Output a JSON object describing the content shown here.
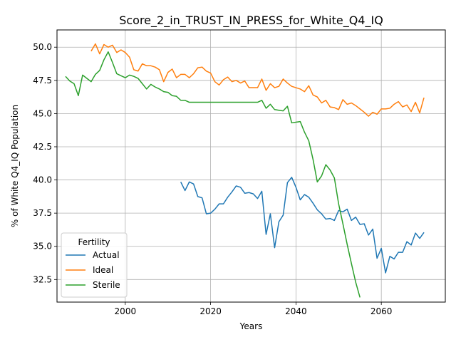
{
  "chart_data": {
    "type": "line",
    "title": "Score_2_in_TRUST_IN_PRESS_for_White_Q4_IQ",
    "xlabel": "Years",
    "ylabel": "% of White Q4_IQ Population",
    "xlim": [
      1984,
      2075
    ],
    "ylim": [
      30.8,
      51.3
    ],
    "xticks": [
      2000,
      2020,
      2040,
      2060
    ],
    "yticks": [
      32.5,
      35.0,
      37.5,
      40.0,
      42.5,
      45.0,
      47.5,
      50.0
    ],
    "xtick_labels": [
      "2000",
      "2020",
      "2040",
      "2060"
    ],
    "ytick_labels": [
      "32.5",
      "35.0",
      "37.5",
      "40.0",
      "42.5",
      "45.0",
      "47.5",
      "50.0"
    ],
    "grid": true,
    "legend": {
      "title": "Fertility",
      "position": "lower-left"
    },
    "series": [
      {
        "name": "Actual",
        "color": "#1f77b4",
        "x": [
          2013,
          2014,
          2015,
          2016,
          2017,
          2018,
          2019,
          2020,
          2021,
          2022,
          2023,
          2024,
          2025,
          2026,
          2027,
          2028,
          2029,
          2030,
          2031,
          2032,
          2033,
          2034,
          2035,
          2036,
          2037,
          2038,
          2039,
          2040,
          2041,
          2042,
          2043,
          2044,
          2045,
          2046,
          2047,
          2048,
          2049,
          2050,
          2051,
          2052,
          2053,
          2054,
          2055,
          2056,
          2057,
          2058,
          2059,
          2060,
          2061,
          2062,
          2063,
          2064,
          2065,
          2066,
          2067,
          2068,
          2069,
          2070
        ],
        "y": [
          39.85,
          39.2,
          39.85,
          39.7,
          38.75,
          38.65,
          37.45,
          37.5,
          37.8,
          38.2,
          38.2,
          38.7,
          39.1,
          39.55,
          39.45,
          39.0,
          39.05,
          38.95,
          38.6,
          39.15,
          35.9,
          37.45,
          34.9,
          36.85,
          37.35,
          39.8,
          40.2,
          39.45,
          38.5,
          38.9,
          38.7,
          38.25,
          37.75,
          37.45,
          37.05,
          37.1,
          36.95,
          37.7,
          37.6,
          37.8,
          36.95,
          37.2,
          36.65,
          36.7,
          35.85,
          36.3,
          34.1,
          34.85,
          33.0,
          34.25,
          34.05,
          34.55,
          34.55,
          35.35,
          35.1,
          36.0,
          35.6,
          36.05
        ]
      },
      {
        "name": "Ideal",
        "color": "#ff7f0e",
        "x": [
          1992,
          1993,
          1994,
          1995,
          1996,
          1997,
          1998,
          1999,
          2000,
          2001,
          2002,
          2003,
          2004,
          2005,
          2006,
          2007,
          2008,
          2009,
          2010,
          2011,
          2012,
          2013,
          2014,
          2015,
          2016,
          2017,
          2018,
          2019,
          2020,
          2021,
          2022,
          2023,
          2024,
          2025,
          2026,
          2027,
          2028,
          2029,
          2030,
          2031,
          2032,
          2033,
          2034,
          2035,
          2036,
          2037,
          2038,
          2039,
          2040,
          2041,
          2042,
          2043,
          2044,
          2045,
          2046,
          2047,
          2048,
          2049,
          2050,
          2051,
          2052,
          2053,
          2054,
          2055,
          2056,
          2057,
          2058,
          2059,
          2060,
          2061,
          2062,
          2063,
          2064,
          2065,
          2066,
          2067,
          2068,
          2069,
          2070
        ],
        "y": [
          49.7,
          50.25,
          49.5,
          50.2,
          50.0,
          50.15,
          49.6,
          49.8,
          49.6,
          49.25,
          48.3,
          48.2,
          48.75,
          48.6,
          48.6,
          48.5,
          48.3,
          47.4,
          48.1,
          48.35,
          47.7,
          47.95,
          47.95,
          47.7,
          48.0,
          48.45,
          48.5,
          48.2,
          48.05,
          47.4,
          47.15,
          47.55,
          47.75,
          47.4,
          47.5,
          47.3,
          47.45,
          46.95,
          46.95,
          46.95,
          47.6,
          46.75,
          47.25,
          46.95,
          47.05,
          47.6,
          47.3,
          47.05,
          46.95,
          46.85,
          46.65,
          47.1,
          46.4,
          46.25,
          45.8,
          46.0,
          45.5,
          45.45,
          45.3,
          46.05,
          45.7,
          45.8,
          45.6,
          45.35,
          45.1,
          44.8,
          45.1,
          44.95,
          45.35,
          45.35,
          45.4,
          45.7,
          45.9,
          45.5,
          45.65,
          45.15,
          45.85,
          45.05,
          46.2
        ]
      },
      {
        "name": "Sterile",
        "color": "#2ca02c",
        "x": [
          1986,
          1987,
          1988,
          1989,
          1990,
          1991,
          1992,
          1993,
          1994,
          1995,
          1996,
          1997,
          1998,
          1999,
          2000,
          2001,
          2002,
          2003,
          2004,
          2005,
          2006,
          2007,
          2008,
          2009,
          2010,
          2011,
          2012,
          2013,
          2014,
          2015,
          2016,
          2017,
          2018,
          2019,
          2020,
          2021,
          2022,
          2023,
          2024,
          2025,
          2026,
          2027,
          2028,
          2029,
          2030,
          2031,
          2032,
          2033,
          2034,
          2035,
          2036,
          2037,
          2038,
          2039,
          2040,
          2041,
          2042,
          2043,
          2044,
          2045,
          2046,
          2047,
          2048,
          2049,
          2050,
          2051,
          2052,
          2053,
          2054,
          2055
        ],
        "y": [
          47.8,
          47.45,
          47.25,
          46.35,
          47.9,
          47.65,
          47.4,
          47.95,
          48.25,
          49.05,
          49.65,
          48.85,
          48.0,
          47.85,
          47.7,
          47.9,
          47.8,
          47.65,
          47.25,
          46.85,
          47.2,
          47.0,
          46.85,
          46.65,
          46.6,
          46.35,
          46.3,
          46.0,
          46.0,
          45.85,
          45.85,
          45.85,
          45.85,
          45.85,
          45.85,
          45.85,
          45.85,
          45.85,
          45.85,
          45.85,
          45.85,
          45.85,
          45.85,
          45.85,
          45.85,
          45.85,
          46.0,
          45.4,
          45.7,
          45.3,
          45.25,
          45.2,
          45.55,
          44.3,
          44.35,
          44.4,
          43.6,
          42.95,
          41.55,
          39.85,
          40.3,
          41.15,
          40.75,
          40.15,
          38.2,
          36.7,
          35.15,
          33.7,
          32.3,
          31.15
        ]
      }
    ]
  }
}
